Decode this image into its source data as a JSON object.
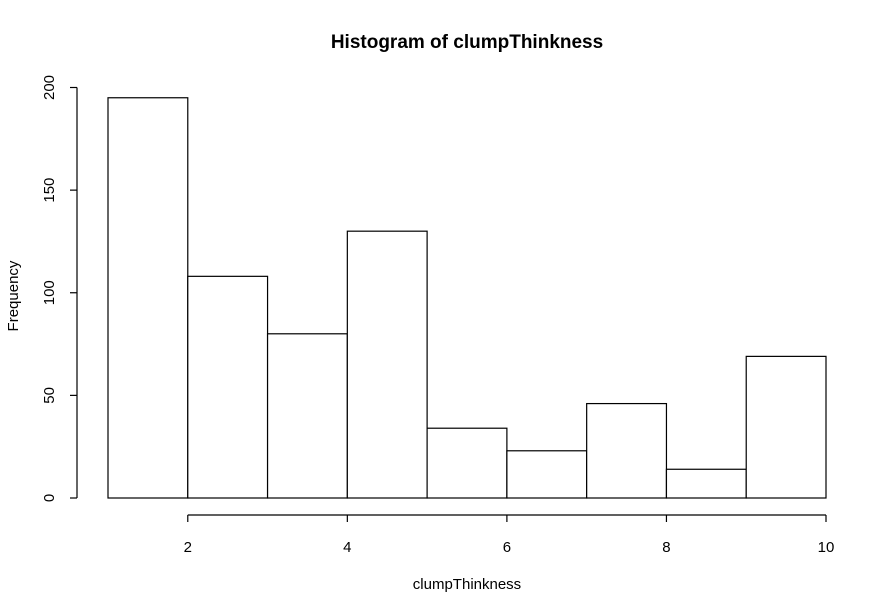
{
  "chart_data": {
    "type": "bar",
    "title": "Histogram of clumpThinkness",
    "xlabel": "clumpThinkness",
    "ylabel": "Frequency",
    "bins": [
      {
        "from": 1,
        "to": 2,
        "count": 195
      },
      {
        "from": 2,
        "to": 3,
        "count": 108
      },
      {
        "from": 3,
        "to": 4,
        "count": 80
      },
      {
        "from": 4,
        "to": 5,
        "count": 130
      },
      {
        "from": 5,
        "to": 6,
        "count": 34
      },
      {
        "from": 6,
        "to": 7,
        "count": 23
      },
      {
        "from": 7,
        "to": 8,
        "count": 46
      },
      {
        "from": 8,
        "to": 9,
        "count": 14
      },
      {
        "from": 9,
        "to": 10,
        "count": 69
      }
    ],
    "xlim": [
      1,
      10
    ],
    "ylim": [
      0,
      200
    ],
    "x_ticks": [
      2,
      4,
      6,
      8,
      10
    ],
    "x_tick_labels": [
      "2",
      "4",
      "6",
      "8",
      "10"
    ],
    "y_ticks": [
      0,
      50,
      100,
      150,
      200
    ],
    "y_tick_labels": [
      "0",
      "50",
      "100",
      "150",
      "200"
    ],
    "grid": false,
    "colors": {
      "bar_fill": "#ffffff",
      "bar_stroke": "#000000",
      "axis": "#000000"
    }
  }
}
